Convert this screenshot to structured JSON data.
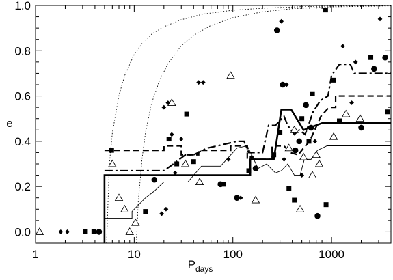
{
  "chart_data": {
    "type": "scatter",
    "title": "",
    "xlabel": "P",
    "xlabel_sub": "days",
    "ylabel": "e",
    "xscale": "log",
    "xlim": [
      1,
      4000
    ],
    "ylim": [
      -0.05,
      1.0
    ],
    "grid": false,
    "legend": "none",
    "x_ticks": [
      1,
      10,
      100,
      1000
    ],
    "x_tick_labels": [
      "1",
      "10",
      "100",
      "1000"
    ],
    "y_ticks": [
      0.0,
      0.2,
      0.4,
      0.6,
      0.8,
      1.0
    ],
    "y_tick_labels": [
      "0.0",
      "0.2",
      "0.4",
      "0.6",
      "0.8",
      "1.0"
    ],
    "colors": {
      "ink": "#000000",
      "background": "#ffffff"
    },
    "markers": {
      "filled_squares": [
        [
          3.2,
          0.0
        ],
        [
          3.9,
          0.0
        ],
        [
          5.9,
          0.36
        ],
        [
          13.0,
          0.09
        ],
        [
          22.5,
          0.41
        ],
        [
          27.0,
          0.3
        ],
        [
          34.0,
          0.52
        ],
        [
          40.0,
          0.31
        ],
        [
          80.0,
          0.21
        ],
        [
          145.0,
          0.27
        ],
        [
          260.0,
          0.34
        ],
        [
          300.0,
          0.44
        ],
        [
          370.0,
          0.19
        ],
        [
          420.0,
          0.14
        ],
        [
          500.0,
          0.5
        ],
        [
          590.0,
          0.4
        ],
        [
          640.0,
          0.61
        ],
        [
          870.0,
          0.98
        ],
        [
          880.0,
          0.12
        ],
        [
          1050.0,
          0.67
        ],
        [
          1200.0,
          0.49
        ],
        [
          2500.0,
          0.77
        ],
        [
          3700.0,
          0.53
        ]
      ],
      "filled_circles": [
        [
          4.4,
          0.0
        ],
        [
          16.0,
          0.23
        ],
        [
          75.0,
          0.21
        ],
        [
          110.0,
          0.15
        ],
        [
          170.0,
          0.28
        ],
        [
          280.0,
          0.89
        ],
        [
          320.0,
          0.65
        ],
        [
          430.0,
          0.36
        ],
        [
          470.0,
          0.4
        ],
        [
          550.0,
          0.56
        ],
        [
          620.0,
          0.46
        ],
        [
          720.0,
          0.07
        ],
        [
          2000.0,
          0.46
        ],
        [
          2700.0,
          0.72
        ],
        [
          3500.0,
          0.77
        ]
      ],
      "diamonds": [
        [
          1.8,
          0.0
        ],
        [
          2.1,
          0.0
        ],
        [
          19.0,
          0.08
        ],
        [
          20.0,
          0.55
        ],
        [
          21.0,
          0.1
        ],
        [
          22.0,
          0.57
        ],
        [
          24.0,
          0.43
        ],
        [
          26.0,
          0.26
        ],
        [
          30.0,
          0.41
        ],
        [
          45.0,
          0.66
        ],
        [
          50.0,
          0.66
        ],
        [
          90.0,
          0.32
        ],
        [
          120.0,
          0.15
        ],
        [
          155.0,
          0.33
        ],
        [
          310.0,
          0.93
        ],
        [
          330.0,
          0.32
        ],
        [
          350.0,
          0.65
        ],
        [
          500.0,
          0.25
        ],
        [
          680.0,
          0.4
        ],
        [
          1300.0,
          0.82
        ],
        [
          1600.0,
          0.57
        ],
        [
          1750.0,
          0.75
        ],
        [
          3100.0,
          0.94
        ]
      ],
      "open_triangles": [
        [
          1.1,
          0.0
        ],
        [
          6.0,
          0.3
        ],
        [
          7.0,
          0.15
        ],
        [
          8.0,
          0.1
        ],
        [
          9.0,
          0.0
        ],
        [
          10.3,
          0.04
        ],
        [
          24.0,
          0.57
        ],
        [
          33.0,
          0.3
        ],
        [
          46.0,
          0.22
        ],
        [
          95.0,
          0.69
        ],
        [
          170.0,
          0.14
        ],
        [
          370.0,
          0.37
        ],
        [
          420.0,
          0.45
        ],
        [
          480.0,
          0.1
        ],
        [
          520.0,
          0.33
        ],
        [
          640.0,
          0.25
        ],
        [
          700.0,
          0.34
        ],
        [
          750.0,
          0.3
        ],
        [
          1050.0,
          0.42
        ],
        [
          1400.0,
          0.52
        ],
        [
          1950.0,
          0.5
        ]
      ]
    },
    "series": [
      {
        "style": "solid-thick",
        "points": [
          [
            5.0,
            -0.05
          ],
          [
            5.0,
            0.0
          ],
          [
            5.0,
            0.25
          ],
          [
            150.0,
            0.25
          ],
          [
            150.0,
            0.32
          ],
          [
            260.0,
            0.32
          ],
          [
            310.0,
            0.54
          ],
          [
            390.0,
            0.54
          ],
          [
            520.0,
            0.45
          ],
          [
            800.0,
            0.48
          ],
          [
            4000.0,
            0.48
          ]
        ]
      },
      {
        "style": "solid-thin",
        "points": [
          [
            5.0,
            0.06
          ],
          [
            9.5,
            0.06
          ],
          [
            9.5,
            0.09
          ],
          [
            13.0,
            0.15
          ],
          [
            16.0,
            0.18
          ],
          [
            20.0,
            0.22
          ],
          [
            35.0,
            0.22
          ],
          [
            48.0,
            0.29
          ],
          [
            75.0,
            0.29
          ],
          [
            110.0,
            0.37
          ],
          [
            140.0,
            0.38
          ],
          [
            180.0,
            0.28
          ],
          [
            220.0,
            0.3
          ],
          [
            270.0,
            0.26
          ],
          [
            310.0,
            0.27
          ],
          [
            360.0,
            0.3
          ],
          [
            420.0,
            0.25
          ],
          [
            480.0,
            0.25
          ],
          [
            530.0,
            0.32
          ],
          [
            620.0,
            0.32
          ],
          [
            720.0,
            0.36
          ],
          [
            900.0,
            0.38
          ],
          [
            4000.0,
            0.38
          ]
        ]
      },
      {
        "style": "dashed",
        "points": [
          [
            5.0,
            0.36
          ],
          [
            20.0,
            0.36
          ],
          [
            20.0,
            0.38
          ],
          [
            30.0,
            0.38
          ],
          [
            30.0,
            0.34
          ],
          [
            45.0,
            0.34
          ],
          [
            45.0,
            0.36
          ],
          [
            95.0,
            0.36
          ],
          [
            95.0,
            0.38
          ],
          [
            140.0,
            0.38
          ],
          [
            140.0,
            0.32
          ],
          [
            250.0,
            0.32
          ],
          [
            250.0,
            0.38
          ],
          [
            330.0,
            0.38
          ],
          [
            380.0,
            0.35
          ],
          [
            460.0,
            0.34
          ],
          [
            520.0,
            0.37
          ],
          [
            600.0,
            0.4
          ],
          [
            780.0,
            0.51
          ],
          [
            940.0,
            0.55
          ],
          [
            1100.0,
            0.55
          ],
          [
            1100.0,
            0.6
          ],
          [
            4000.0,
            0.6
          ]
        ]
      },
      {
        "style": "dash-dot",
        "points": [
          [
            5.0,
            0.27
          ],
          [
            20.0,
            0.27
          ],
          [
            25.0,
            0.3
          ],
          [
            33.0,
            0.34
          ],
          [
            40.0,
            0.34
          ],
          [
            55.0,
            0.37
          ],
          [
            70.0,
            0.38
          ],
          [
            110.0,
            0.4
          ],
          [
            130.0,
            0.4
          ],
          [
            145.0,
            0.35
          ],
          [
            200.0,
            0.35
          ],
          [
            230.0,
            0.47
          ],
          [
            270.0,
            0.47
          ],
          [
            330.0,
            0.51
          ],
          [
            360.0,
            0.47
          ],
          [
            420.0,
            0.43
          ],
          [
            470.0,
            0.45
          ],
          [
            540.0,
            0.43
          ],
          [
            650.0,
            0.53
          ],
          [
            770.0,
            0.58
          ],
          [
            920.0,
            0.6
          ],
          [
            1000.0,
            0.69
          ],
          [
            1200.0,
            0.74
          ],
          [
            1550.0,
            0.74
          ],
          [
            1700.0,
            0.7
          ],
          [
            4000.0,
            0.7
          ]
        ]
      },
      {
        "style": "dotted",
        "points": [
          [
            5.25,
            -0.05
          ],
          [
            5.6,
            0.3
          ],
          [
            6.0,
            0.436
          ],
          [
            7.0,
            0.603
          ],
          [
            8.0,
            0.69
          ],
          [
            10.0,
            0.784
          ],
          [
            12.0,
            0.832
          ],
          [
            15.0,
            0.873
          ],
          [
            20.0,
            0.906
          ],
          [
            30.0,
            0.937
          ],
          [
            50.0,
            0.962
          ],
          [
            100.0,
            0.979
          ],
          [
            200.0,
            0.988
          ],
          [
            500.0,
            0.995
          ],
          [
            1000.0,
            0.997
          ],
          [
            4000.0,
            0.999
          ]
        ]
      },
      {
        "style": "dotted",
        "points": [
          [
            10.5,
            -0.05
          ],
          [
            11.0,
            0.134
          ],
          [
            12.0,
            0.322
          ],
          [
            13.0,
            0.437
          ],
          [
            15.0,
            0.568
          ],
          [
            18.0,
            0.667
          ],
          [
            22.0,
            0.743
          ],
          [
            30.0,
            0.822
          ],
          [
            40.0,
            0.868
          ],
          [
            60.0,
            0.912
          ],
          [
            100.0,
            0.946
          ],
          [
            200.0,
            0.972
          ],
          [
            400.0,
            0.986
          ],
          [
            1000.0,
            0.994
          ],
          [
            4000.0,
            0.998
          ]
        ]
      },
      {
        "style": "long-dash-thin",
        "points": [
          [
            1.0,
            0.0
          ],
          [
            4000.0,
            0.0
          ]
        ]
      }
    ]
  }
}
